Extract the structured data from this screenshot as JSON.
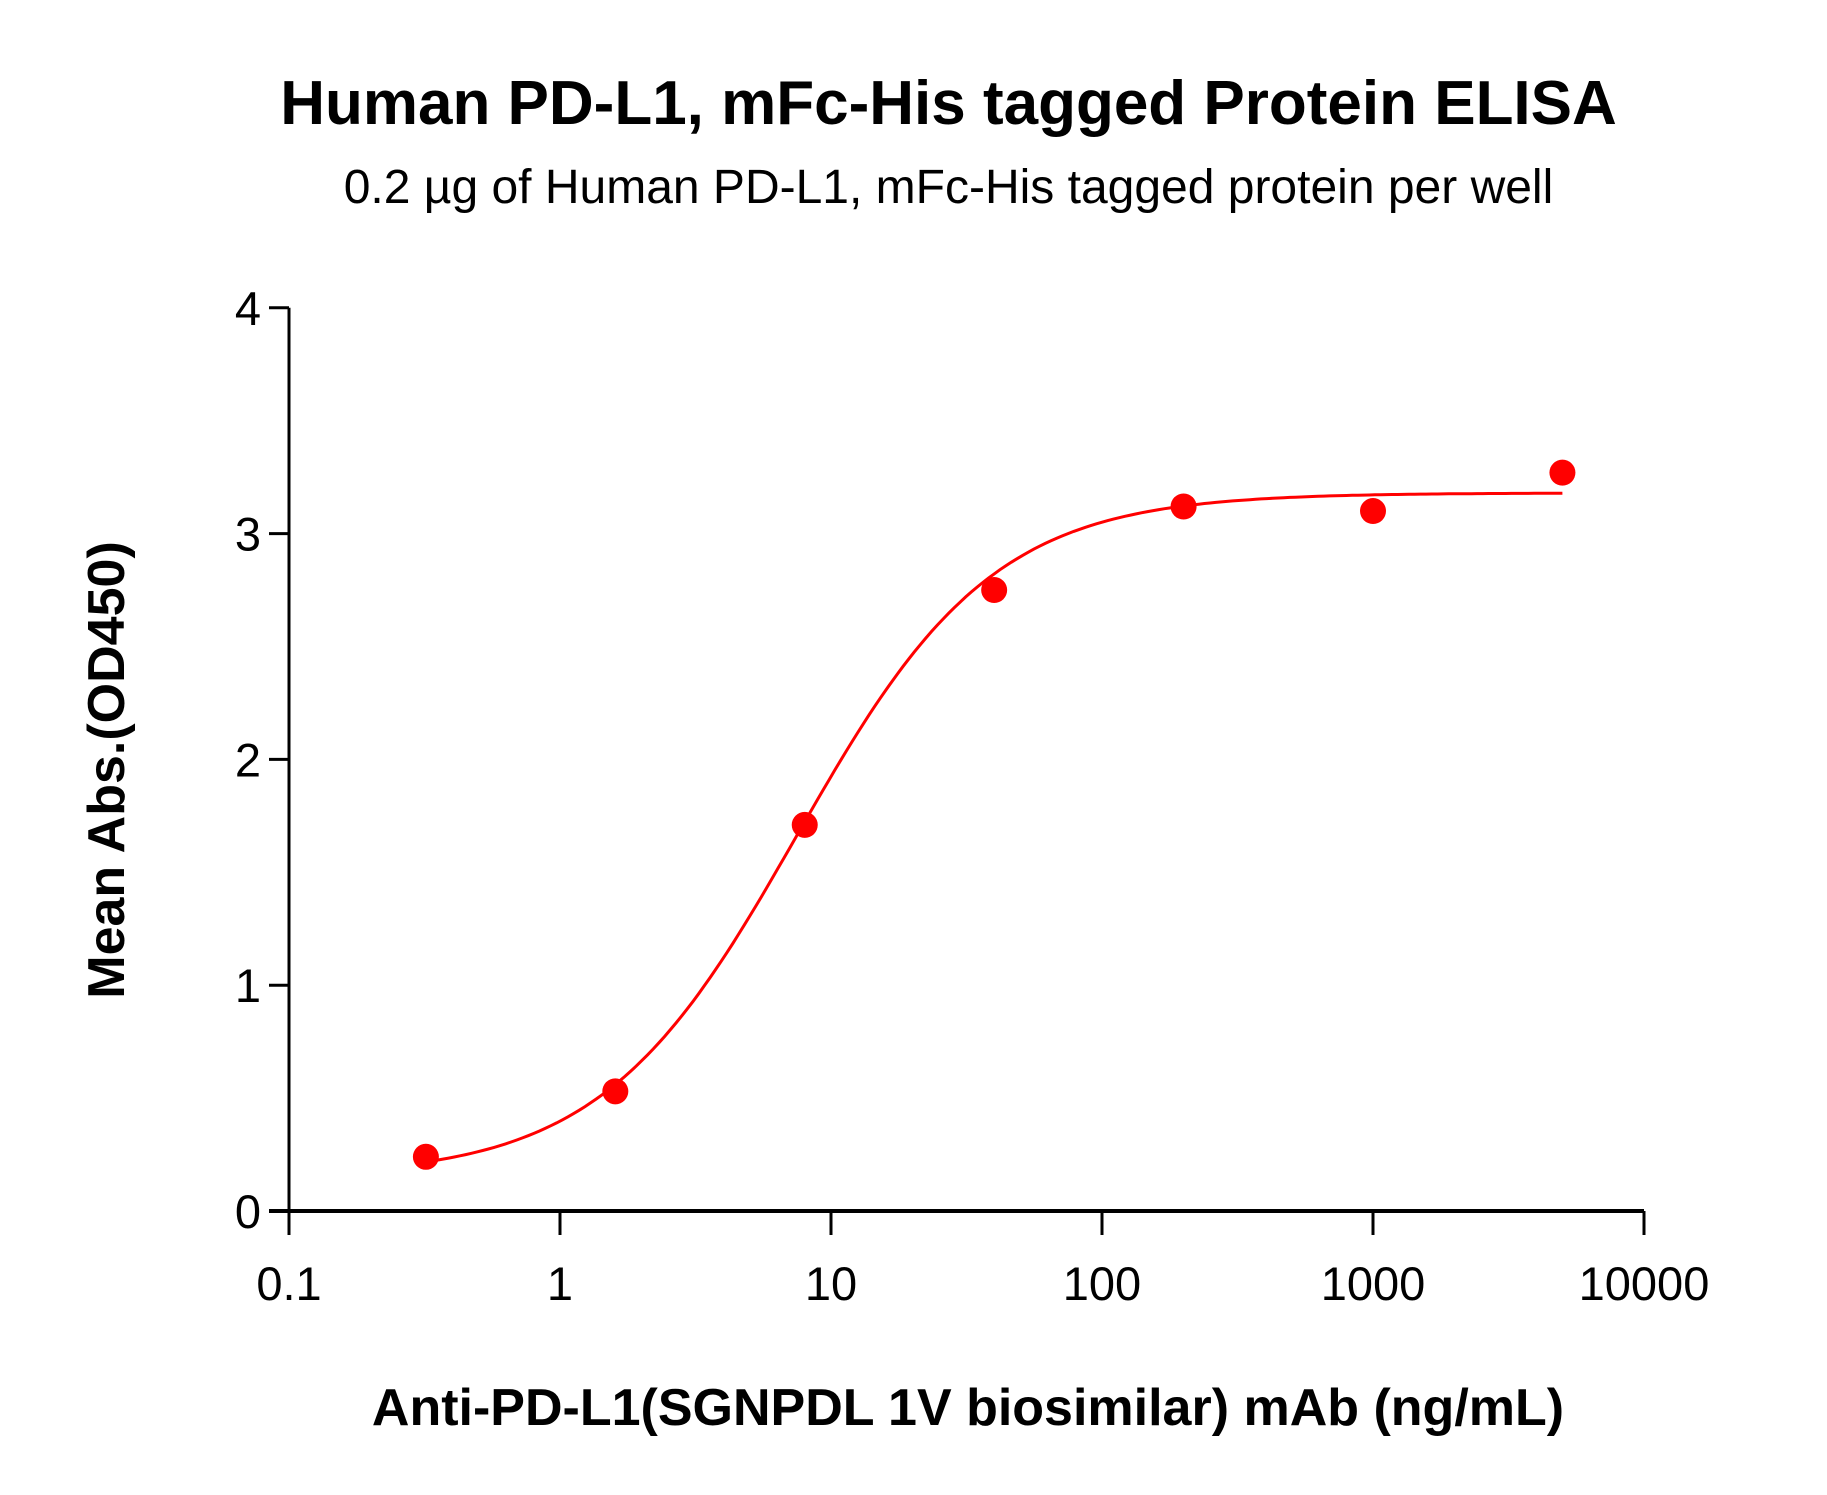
{
  "chart_data": {
    "type": "scatter",
    "title": "Human PD-L1, mFc-His tagged Protein ELISA",
    "subtitle": "0.2 µg of Human PD-L1, mFc-His tagged protein per well",
    "xlabel": "Anti-PD-L1(SGNPDL 1V biosimilar) mAb (ng/mL)",
    "ylabel": "Mean Abs.(OD450)",
    "x_scale": "log",
    "xlim": [
      0.1,
      10000
    ],
    "ylim": [
      0,
      4
    ],
    "x_ticks": [
      "0.1",
      "1",
      "10",
      "100",
      "1000",
      "10000"
    ],
    "y_ticks": [
      "0",
      "1",
      "2",
      "3",
      "4"
    ],
    "grid": false,
    "color": "#ff0000",
    "fit": "4-parameter logistic curve",
    "series": [
      {
        "x": [
          0.32,
          1.6,
          8,
          40,
          200,
          1000,
          5000
        ],
        "y": [
          0.24,
          0.53,
          1.71,
          2.75,
          3.12,
          3.1,
          3.27
        ]
      }
    ]
  }
}
